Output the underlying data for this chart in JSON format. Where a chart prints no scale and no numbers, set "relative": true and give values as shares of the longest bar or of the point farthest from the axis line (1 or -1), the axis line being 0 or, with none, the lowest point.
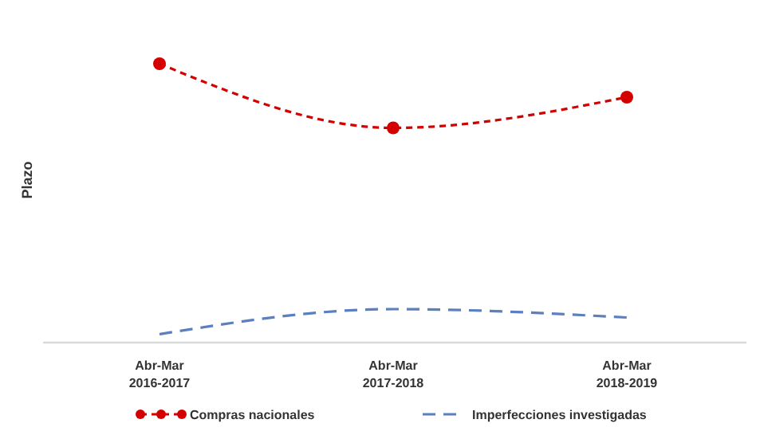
{
  "chart_data": {
    "type": "line",
    "relative": true,
    "ylabel": "Plazo",
    "categories": [
      "Abr-Mar 2016-2017",
      "Abr-Mar 2017-2018",
      "Abr-Mar 2018-2019"
    ],
    "series": [
      {
        "name": "Compras nacionales",
        "color": "#d40000",
        "values": [
          1,
          0.77,
          0.88
        ],
        "marker": "circle",
        "line_style": "dashed"
      },
      {
        "name": "Imperfecciones investigadas",
        "color": "#5b7fbf",
        "values": [
          0.03,
          0.12,
          0.09
        ],
        "marker": "none",
        "line_style": "dashed"
      }
    ],
    "legend": "bottom"
  }
}
